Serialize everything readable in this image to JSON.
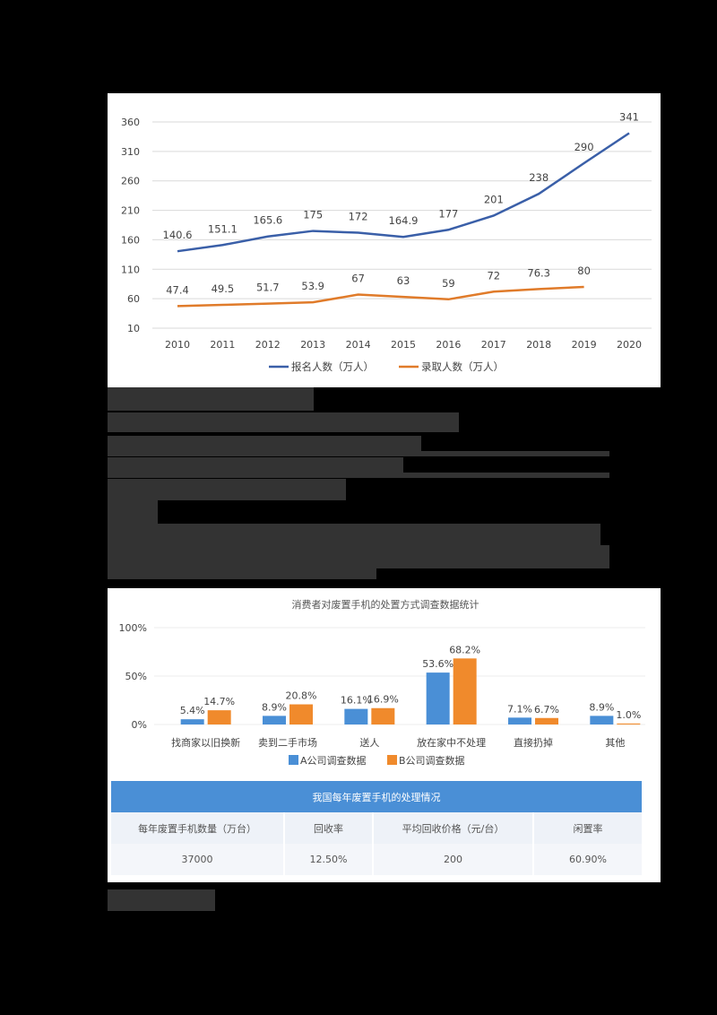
{
  "chart_data": [
    {
      "type": "line",
      "title": "",
      "xlabel": "",
      "ylabel": "",
      "x": [
        "2010",
        "2011",
        "2012",
        "2013",
        "2014",
        "2015",
        "2016",
        "2017",
        "2018",
        "2019",
        "2020"
      ],
      "yticks": [
        "10",
        "60",
        "110",
        "160",
        "210",
        "260",
        "310",
        "360"
      ],
      "ylim": [
        10,
        360
      ],
      "grid": true,
      "legend_position": "bottom",
      "series": [
        {
          "name": "报名人数（万人）",
          "color": "#3a5fa8",
          "values": [
            140.6,
            151.1,
            165.6,
            175,
            172,
            164.9,
            177,
            201,
            238,
            290,
            341
          ],
          "labels": [
            "140.6",
            "151.1",
            "165.6",
            "175",
            "172",
            "164.9",
            "177",
            "201",
            "238",
            "290",
            "341"
          ]
        },
        {
          "name": "录取人数（万人）",
          "color": "#e07b2a",
          "values": [
            47.4,
            49.5,
            51.7,
            53.9,
            67,
            63,
            59,
            72,
            76.3,
            80,
            null
          ],
          "labels": [
            "47.4",
            "49.5",
            "51.7",
            "53.9",
            "67",
            "63",
            "59",
            "72",
            "76.3",
            "80",
            ""
          ]
        }
      ]
    },
    {
      "type": "bar",
      "title": "消费者对废置手机的处置方式调查数据统计",
      "xlabel": "",
      "ylabel": "",
      "categories": [
        "找商家以旧换新",
        "卖到二手市场",
        "送人",
        "放在家中不处理",
        "直接扔掉",
        "其他"
      ],
      "yticks": [
        "0%",
        "50%",
        "100%"
      ],
      "ylim": [
        0,
        100
      ],
      "grid": true,
      "legend_position": "bottom",
      "series": [
        {
          "name": "A公司调查数据",
          "color": "#4a8fd6",
          "values": [
            5.4,
            8.9,
            16.1,
            53.6,
            7.1,
            8.9
          ],
          "labels": [
            "5.4%",
            "8.9%",
            "16.1%",
            "53.6%",
            "7.1%",
            "8.9%"
          ]
        },
        {
          "name": "B公司调查数据",
          "color": "#f08a2c",
          "values": [
            14.7,
            20.8,
            16.9,
            68.2,
            6.7,
            1.0
          ],
          "labels": [
            "14.7%",
            "20.8%",
            "16.9%",
            "68.2%",
            "6.7%",
            "1.0%"
          ]
        }
      ]
    },
    {
      "type": "table",
      "title": "我国每年废置手机的处理情况",
      "columns": [
        "每年废置手机数量（万台）",
        "回收率",
        "平均回收价格（元/台）",
        "闲置率"
      ],
      "rows": [
        [
          "37000",
          "12.50%",
          "200",
          "60.90%"
        ]
      ]
    }
  ],
  "table": {
    "title": "我国每年废置手机的处理情况",
    "columns": [
      "每年废置手机数量（万台）",
      "回收率",
      "平均回收价格（元/台）",
      "闲置率"
    ],
    "row": [
      "37000",
      "12.50%",
      "200",
      "60.90%"
    ]
  },
  "colors": {
    "blue_line": "#3a5fa8",
    "orange_line": "#e07b2a",
    "bar_a": "#4a8fd6",
    "bar_b": "#f08a2c",
    "table_header": "#4a8fd6",
    "redaction": "#333333"
  }
}
